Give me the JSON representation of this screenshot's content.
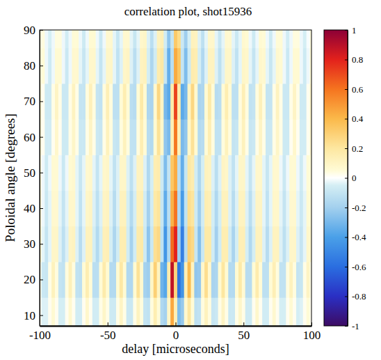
{
  "chart_data": {
    "type": "heatmap",
    "title": "correlation plot,  shot15936",
    "x_label": "delay [microseconds]",
    "y_label": "Poloidal angle [degrees]",
    "xlim": [
      -100,
      100
    ],
    "xticks": [
      -100,
      -50,
      0,
      50,
      100
    ],
    "ylim": [
      7,
      90
    ],
    "yticks": [
      10,
      20,
      30,
      40,
      50,
      60,
      70,
      80,
      90
    ],
    "colorbar": {
      "range": [
        -1,
        1
      ],
      "ticks": [
        -1,
        -0.8,
        -0.6,
        -0.4,
        -0.2,
        0,
        0.2,
        0.4,
        0.6,
        0.8,
        1
      ]
    },
    "x": [
      -100,
      -97.5,
      -95,
      -92.5,
      -90,
      -87.5,
      -85,
      -82.5,
      -80,
      -77.5,
      -75,
      -72.5,
      -70,
      -67.5,
      -65,
      -62.5,
      -60,
      -57.5,
      -55,
      -52.5,
      -50,
      -47.5,
      -45,
      -42.5,
      -40,
      -37.5,
      -35,
      -32.5,
      -30,
      -27.5,
      -25,
      -22.5,
      -20,
      -17.5,
      -15,
      -12.5,
      -10,
      -7.5,
      -5,
      -2.5,
      0,
      2.5,
      5,
      7.5,
      10,
      12.5,
      15,
      17.5,
      20,
      22.5,
      25,
      27.5,
      30,
      32.5,
      35,
      37.5,
      40,
      42.5,
      45,
      47.5,
      50,
      52.5,
      55,
      57.5,
      60,
      62.5,
      65,
      67.5,
      70,
      72.5,
      75,
      77.5,
      80,
      82.5,
      85,
      87.5,
      90,
      92.5,
      95,
      97.5,
      100
    ],
    "y": [
      10,
      20,
      30,
      40,
      50,
      60,
      70,
      80,
      90
    ],
    "values": [
      [
        0.02,
        -0.04,
        -0.04,
        0.02,
        0.06,
        0.02,
        -0.05,
        -0.05,
        0.02,
        0.07,
        0.02,
        -0.06,
        -0.06,
        0.02,
        0.08,
        0.02,
        -0.06,
        -0.06,
        0.03,
        0.09,
        0.03,
        -0.07,
        -0.07,
        0.03,
        0.1,
        0.03,
        -0.08,
        -0.08,
        0.03,
        0.11,
        0.04,
        -0.1,
        -0.11,
        0.04,
        0.15,
        0.05,
        -0.16,
        -0.19,
        0.09,
        0.45,
        0.14,
        -0.28,
        -0.23,
        0.07,
        0.2,
        0.05,
        -0.12,
        -0.11,
        0.04,
        0.12,
        0.04,
        -0.09,
        -0.08,
        0.03,
        0.1,
        0.03,
        -0.08,
        -0.08,
        0.03,
        0.09,
        0.03,
        -0.07,
        -0.07,
        0.02,
        0.08,
        0.02,
        -0.06,
        -0.06,
        0.02,
        0.07,
        0.02,
        -0.05,
        -0.05,
        0.02,
        0.06,
        0.02,
        -0.05,
        -0.04,
        0.02,
        0.05,
        0.02
      ],
      [
        0.03,
        -0.08,
        -0.09,
        0.03,
        0.12,
        0.04,
        -0.1,
        -0.11,
        0.04,
        0.13,
        0.04,
        -0.11,
        -0.12,
        0.05,
        0.15,
        0.05,
        -0.13,
        -0.13,
        0.05,
        0.17,
        0.06,
        -0.15,
        -0.15,
        0.06,
        0.19,
        0.06,
        -0.16,
        -0.16,
        0.06,
        0.22,
        0.07,
        -0.19,
        -0.21,
        0.09,
        0.3,
        0.11,
        -0.32,
        -0.37,
        0.17,
        0.88,
        0.28,
        -0.57,
        -0.45,
        0.14,
        0.39,
        0.11,
        -0.24,
        -0.23,
        0.08,
        0.24,
        0.07,
        -0.18,
        -0.17,
        0.06,
        0.2,
        0.06,
        -0.15,
        -0.15,
        0.06,
        0.18,
        0.06,
        -0.14,
        -0.14,
        0.05,
        0.16,
        0.05,
        -0.12,
        -0.12,
        0.05,
        0.14,
        0.04,
        -0.11,
        -0.11,
        0.04,
        0.12,
        0.04,
        -0.1,
        -0.09,
        0.03,
        0.1,
        0.03
      ],
      [
        0.08,
        -0.03,
        -0.1,
        -0.03,
        0.09,
        0.09,
        -0.04,
        -0.12,
        -0.04,
        0.1,
        0.11,
        -0.04,
        -0.14,
        -0.04,
        0.12,
        0.12,
        -0.05,
        -0.15,
        -0.05,
        0.13,
        0.14,
        -0.05,
        -0.17,
        -0.06,
        0.15,
        0.15,
        -0.06,
        -0.19,
        -0.06,
        0.17,
        0.18,
        -0.07,
        -0.25,
        -0.08,
        0.23,
        0.26,
        -0.11,
        -0.44,
        -0.16,
        0.62,
        0.8,
        -0.21,
        -0.53,
        -0.14,
        0.3,
        0.26,
        -0.09,
        -0.27,
        -0.08,
        0.18,
        0.18,
        -0.06,
        -0.2,
        -0.06,
        0.15,
        0.15,
        -0.06,
        -0.18,
        -0.05,
        0.14,
        0.14,
        -0.05,
        -0.16,
        -0.05,
        0.12,
        0.12,
        -0.04,
        -0.14,
        -0.04,
        0.11,
        0.11,
        -0.04,
        -0.12,
        -0.04,
        0.09,
        0.09,
        -0.04,
        -0.1,
        -0.03,
        0.08,
        0.08
      ],
      [
        0.06,
        -0.02,
        -0.08,
        -0.03,
        0.07,
        0.07,
        -0.03,
        -0.1,
        -0.03,
        0.08,
        0.08,
        -0.03,
        -0.11,
        -0.03,
        0.09,
        0.1,
        -0.04,
        -0.12,
        -0.04,
        0.1,
        0.11,
        -0.04,
        -0.14,
        -0.04,
        0.12,
        0.12,
        -0.05,
        -0.15,
        -0.05,
        0.13,
        0.14,
        -0.06,
        -0.2,
        -0.06,
        0.18,
        0.21,
        -0.09,
        -0.35,
        -0.13,
        0.42,
        0.6,
        -0.16,
        -0.42,
        -0.11,
        0.24,
        0.21,
        -0.07,
        -0.21,
        -0.06,
        0.15,
        0.14,
        -0.05,
        -0.16,
        -0.05,
        0.12,
        0.12,
        -0.04,
        -0.14,
        -0.04,
        0.11,
        0.11,
        -0.04,
        -0.13,
        -0.04,
        0.1,
        0.1,
        -0.03,
        -0.11,
        -0.03,
        0.08,
        0.08,
        -0.03,
        -0.1,
        -0.03,
        0.07,
        0.07,
        -0.03,
        -0.08,
        -0.03,
        0.06,
        0.06
      ],
      [
        0.05,
        -0.02,
        -0.07,
        -0.02,
        0.06,
        0.06,
        -0.02,
        -0.08,
        -0.02,
        0.06,
        0.07,
        -0.03,
        -0.09,
        -0.03,
        0.07,
        0.08,
        -0.03,
        -0.1,
        -0.03,
        0.08,
        0.09,
        -0.03,
        -0.11,
        -0.04,
        0.09,
        0.09,
        -0.04,
        -0.12,
        -0.04,
        0.11,
        0.11,
        -0.04,
        -0.16,
        -0.05,
        0.15,
        0.16,
        -0.07,
        -0.28,
        -0.1,
        0.34,
        0.44,
        -0.13,
        -0.34,
        -0.09,
        0.19,
        0.16,
        -0.06,
        -0.17,
        -0.05,
        0.12,
        0.11,
        -0.04,
        -0.13,
        -0.04,
        0.1,
        0.09,
        -0.04,
        -0.11,
        -0.03,
        0.09,
        0.09,
        -0.03,
        -0.1,
        -0.03,
        0.08,
        0.08,
        -0.03,
        -0.09,
        -0.03,
        0.07,
        0.07,
        -0.02,
        -0.08,
        -0.02,
        0.06,
        0.06,
        -0.02,
        -0.07,
        -0.02,
        0.05,
        0.05
      ],
      [
        0.07,
        0.02,
        -0.06,
        -0.06,
        0.02,
        0.08,
        0.02,
        -0.07,
        -0.07,
        0.03,
        0.09,
        0.03,
        -0.08,
        -0.08,
        0.03,
        0.1,
        0.03,
        -0.08,
        -0.09,
        0.03,
        0.12,
        0.04,
        -0.09,
        -0.1,
        0.04,
        0.12,
        0.04,
        -0.11,
        -0.11,
        0.04,
        0.15,
        0.05,
        -0.14,
        -0.15,
        0.06,
        0.22,
        0.08,
        -0.24,
        -0.29,
        0.14,
        0.59,
        0.14,
        -0.29,
        -0.24,
        0.08,
        0.22,
        0.06,
        -0.15,
        -0.14,
        0.05,
        0.15,
        0.04,
        -0.11,
        -0.11,
        0.04,
        0.12,
        0.04,
        -0.1,
        -0.09,
        0.04,
        0.12,
        0.03,
        -0.09,
        -0.08,
        0.03,
        0.1,
        0.03,
        -0.08,
        -0.08,
        0.03,
        0.09,
        0.03,
        -0.07,
        -0.07,
        0.02,
        0.08,
        0.02,
        -0.06,
        -0.06,
        0.02,
        0.07
      ],
      [
        0.08,
        0.02,
        -0.07,
        -0.07,
        0.03,
        0.1,
        0.03,
        -0.08,
        -0.08,
        0.03,
        0.11,
        0.03,
        -0.1,
        -0.1,
        0.04,
        0.13,
        0.04,
        -0.1,
        -0.11,
        0.04,
        0.14,
        0.04,
        -0.12,
        -0.12,
        0.05,
        0.15,
        0.05,
        -0.13,
        -0.14,
        0.05,
        0.18,
        0.06,
        -0.17,
        -0.18,
        0.07,
        0.27,
        0.1,
        -0.3,
        -0.36,
        0.17,
        0.72,
        0.17,
        -0.36,
        -0.3,
        0.1,
        0.27,
        0.07,
        -0.18,
        -0.17,
        0.06,
        0.18,
        0.05,
        -0.14,
        -0.13,
        0.05,
        0.15,
        0.05,
        -0.12,
        -0.12,
        0.04,
        0.14,
        0.04,
        -0.11,
        -0.1,
        0.04,
        0.13,
        0.04,
        -0.1,
        -0.1,
        0.03,
        0.11,
        0.03,
        -0.08,
        -0.08,
        0.03,
        0.1,
        0.03,
        -0.07,
        -0.07,
        0.02,
        0.08
      ],
      [
        0.05,
        0.05,
        -0.02,
        -0.07,
        -0.02,
        0.06,
        0.06,
        -0.02,
        -0.08,
        -0.02,
        0.07,
        0.07,
        -0.03,
        -0.09,
        -0.03,
        0.08,
        0.08,
        -0.03,
        -0.1,
        -0.03,
        0.09,
        0.09,
        -0.03,
        -0.11,
        -0.04,
        0.09,
        0.1,
        -0.04,
        -0.13,
        -0.04,
        0.11,
        0.12,
        -0.05,
        -0.17,
        -0.06,
        0.16,
        0.19,
        -0.09,
        -0.34,
        -0.13,
        0.44,
        0.34,
        -0.1,
        -0.28,
        -0.07,
        0.16,
        0.15,
        -0.05,
        -0.16,
        -0.04,
        0.11,
        0.11,
        -0.04,
        -0.12,
        -0.04,
        0.09,
        0.09,
        -0.04,
        -0.11,
        -0.03,
        0.09,
        0.08,
        -0.03,
        -0.1,
        -0.03,
        0.08,
        0.07,
        -0.03,
        -0.09,
        -0.03,
        0.07,
        0.06,
        -0.02,
        -0.08,
        -0.02,
        0.06,
        0.06,
        -0.02,
        -0.07,
        -0.02,
        0.05
      ],
      [
        0.04,
        0.04,
        -0.02,
        -0.05,
        -0.02,
        0.04,
        0.04,
        -0.02,
        -0.06,
        -0.02,
        0.05,
        0.05,
        -0.02,
        -0.07,
        -0.02,
        0.06,
        0.06,
        -0.02,
        -0.08,
        -0.02,
        0.07,
        0.07,
        -0.03,
        -0.09,
        -0.03,
        0.07,
        0.07,
        -0.03,
        -0.09,
        -0.03,
        0.08,
        0.09,
        -0.04,
        -0.13,
        -0.04,
        0.12,
        0.14,
        -0.06,
        -0.25,
        -0.1,
        0.33,
        0.25,
        -0.08,
        -0.21,
        -0.05,
        0.12,
        0.11,
        -0.04,
        -0.12,
        -0.03,
        0.08,
        0.08,
        -0.03,
        -0.09,
        -0.03,
        0.07,
        0.07,
        -0.03,
        -0.08,
        -0.03,
        0.07,
        0.06,
        -0.02,
        -0.07,
        -0.02,
        0.06,
        0.05,
        -0.02,
        -0.07,
        -0.02,
        0.05,
        0.05,
        -0.02,
        -0.06,
        -0.02,
        0.04,
        0.04,
        -0.02,
        -0.05,
        -0.01,
        0.04
      ]
    ]
  }
}
